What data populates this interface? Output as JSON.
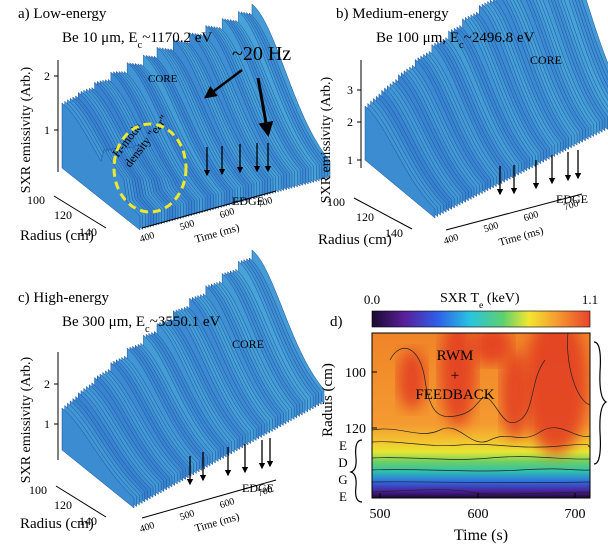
{
  "panels": [
    {
      "label": "a) Low-energy",
      "subtitle": [
        "Be 10 μm, E",
        "c",
        "~1170.2 eV"
      ],
      "y_label": "SXR emissivity (Arb.)",
      "x_label": "Radius (cm)",
      "time_label": "Time (ms)",
      "z_ticks": [
        "1",
        "2"
      ],
      "radius_ticks": [
        "100",
        "120",
        "140"
      ],
      "time_ticks": [
        "400",
        "500",
        "600",
        "700"
      ],
      "annotations": [
        "CORE",
        "EDGE",
        "~20 Hz",
        "H-mode",
        "density \"ear\""
      ]
    },
    {
      "label": "b) Medium-energy",
      "subtitle": [
        "Be 100 μm, E",
        "c",
        "~2496.8 eV"
      ],
      "y_label": "SXR emissivity (Arb.)",
      "x_label": "Radius (cm)",
      "time_label": "Time (ms)",
      "z_ticks": [
        "1",
        "2",
        "3"
      ],
      "radius_ticks": [
        "100",
        "120",
        "140"
      ],
      "time_ticks": [
        "400",
        "500",
        "600",
        "700"
      ],
      "annotations": [
        "CORE",
        "EDGE"
      ]
    },
    {
      "label": "c) High-energy",
      "subtitle": [
        "Be 300 μm, E",
        "c",
        "~3550.1 eV"
      ],
      "y_label": "SXR emissivity (Arb.)",
      "x_label": "Radius (cm)",
      "time_label": "Time (ms)",
      "z_ticks": [
        "1",
        "2"
      ],
      "radius_ticks": [
        "100",
        "120",
        "140"
      ],
      "time_ticks": [
        "400",
        "500",
        "600",
        "700"
      ],
      "annotations": [
        "CORE",
        "EDGE"
      ]
    }
  ],
  "contour": {
    "label": "d)",
    "colorbar_title": [
      "SXR T",
      "e",
      " (keV)"
    ],
    "colorbar_ticks": [
      "0.0",
      "1.1"
    ],
    "y_label": "Raduis (cm)",
    "x_label": "Time (s)",
    "y_ticks": [
      "100",
      "120"
    ],
    "x_ticks": [
      "500",
      "600",
      "700"
    ],
    "annotations": [
      "RWM",
      "+",
      "FEEDBACK"
    ],
    "edge_letters": [
      "E",
      "D",
      "G",
      "E"
    ]
  }
}
